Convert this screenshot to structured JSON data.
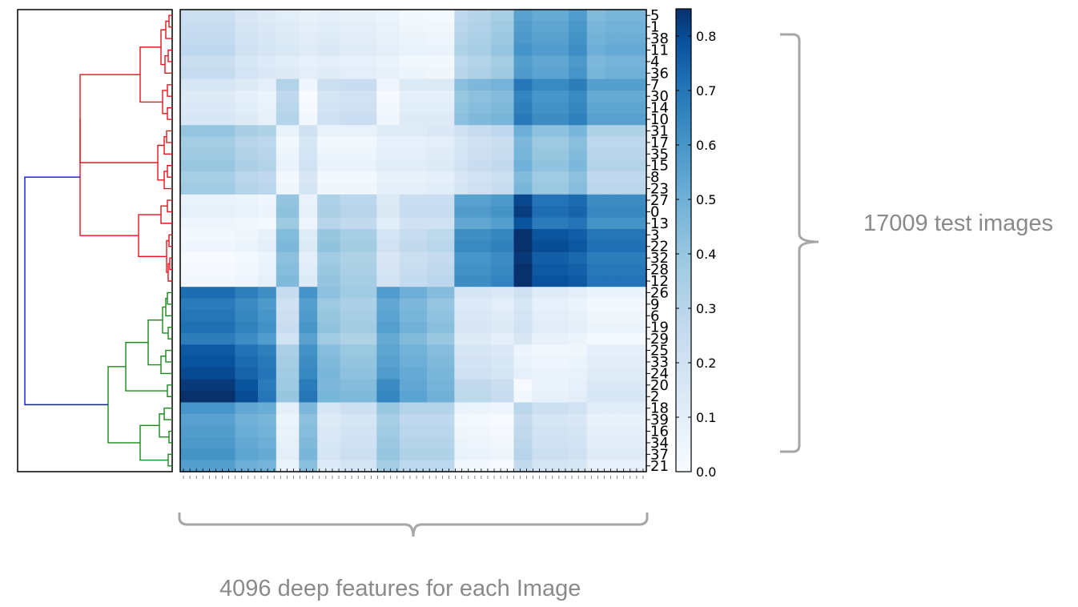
{
  "annotations": {
    "right_brace_label": "17009 test images",
    "bottom_brace_label": "4096 deep features for each Image"
  },
  "colors": {
    "cluster_red": "#e8141d",
    "cluster_green": "#1a8a1a",
    "root_blue": "#1010e0",
    "cmap_low": "#f7fbff",
    "cmap_high": "#08306b",
    "brace": "#a6a6a6"
  },
  "chart_data": {
    "type": "heatmap",
    "title": "",
    "row_labels": [
      "5",
      "1",
      "38",
      "11",
      "4",
      "36",
      "7",
      "30",
      "14",
      "10",
      "31",
      "17",
      "35",
      "15",
      "8",
      "23",
      "27",
      "0",
      "13",
      "3",
      "22",
      "32",
      "28",
      "12",
      "26",
      "9",
      "6",
      "19",
      "29",
      "25",
      "33",
      "24",
      "20",
      "2",
      "18",
      "39",
      "16",
      "34",
      "37",
      "21"
    ],
    "row_groups": [
      {
        "rows": [
          0,
          1,
          2,
          3,
          4,
          5
        ],
        "profile": "A"
      },
      {
        "rows": [
          6,
          7,
          8,
          9
        ],
        "profile": "B"
      },
      {
        "rows": [
          10,
          11,
          12,
          13,
          14,
          15
        ],
        "profile": "C"
      },
      {
        "rows": [
          16,
          17,
          18
        ],
        "profile": "D1"
      },
      {
        "rows": [
          19,
          20,
          21,
          22,
          23
        ],
        "profile": "D2"
      },
      {
        "rows": [
          24,
          25,
          26,
          27,
          28
        ],
        "profile": "E1"
      },
      {
        "rows": [
          29,
          30,
          31
        ],
        "profile": "E2"
      },
      {
        "rows": [
          32,
          33
        ],
        "profile": "E3"
      },
      {
        "rows": [
          34,
          35,
          36,
          37,
          38,
          39
        ],
        "profile": "F"
      }
    ],
    "column_block_fraction": [
      0.12,
      0.05,
      0.04,
      0.05,
      0.04,
      0.05,
      0.08,
      0.05,
      0.06,
      0.06,
      0.03,
      0.05,
      0.05,
      0.04,
      0.08,
      0.04,
      0.04,
      0.03,
      0.06
    ],
    "block_profiles": {
      "A": [
        0.25,
        0.18,
        0.15,
        0.13,
        0.1,
        0.12,
        0.1,
        0.08,
        0.05,
        0.04,
        0.3,
        0.33,
        0.38,
        0.58,
        0.55,
        0.6,
        0.48,
        0.5,
        0.5
      ],
      "B": [
        0.15,
        0.12,
        0.08,
        0.3,
        0.02,
        0.2,
        0.22,
        0.03,
        0.12,
        0.12,
        0.42,
        0.45,
        0.47,
        0.68,
        0.62,
        0.66,
        0.55,
        0.55,
        0.55
      ],
      "C": [
        0.38,
        0.32,
        0.3,
        0.05,
        0.18,
        0.05,
        0.05,
        0.1,
        0.1,
        0.12,
        0.18,
        0.22,
        0.25,
        0.48,
        0.4,
        0.45,
        0.3,
        0.3,
        0.3
      ],
      "D1": [
        0.06,
        0.05,
        0.03,
        0.4,
        0.06,
        0.32,
        0.28,
        0.13,
        0.22,
        0.22,
        0.55,
        0.55,
        0.58,
        0.8,
        0.7,
        0.72,
        0.62,
        0.62,
        0.62
      ],
      "D2": [
        0.02,
        0.04,
        0.08,
        0.45,
        0.12,
        0.4,
        0.35,
        0.18,
        0.25,
        0.28,
        0.62,
        0.62,
        0.65,
        0.86,
        0.78,
        0.76,
        0.7,
        0.7,
        0.7
      ],
      "E1": [
        0.7,
        0.65,
        0.6,
        0.22,
        0.58,
        0.4,
        0.35,
        0.55,
        0.48,
        0.42,
        0.15,
        0.15,
        0.12,
        0.18,
        0.1,
        0.08,
        0.04,
        0.04,
        0.04
      ],
      "E2": [
        0.78,
        0.72,
        0.68,
        0.35,
        0.62,
        0.45,
        0.4,
        0.55,
        0.5,
        0.45,
        0.18,
        0.18,
        0.15,
        0.06,
        0.04,
        0.05,
        0.1,
        0.1,
        0.1
      ],
      "E3": [
        0.85,
        0.8,
        0.7,
        0.4,
        0.7,
        0.48,
        0.46,
        0.65,
        0.55,
        0.5,
        0.28,
        0.28,
        0.25,
        0.02,
        0.08,
        0.1,
        0.16,
        0.16,
        0.16
      ],
      "F": [
        0.58,
        0.52,
        0.5,
        0.08,
        0.45,
        0.15,
        0.2,
        0.38,
        0.3,
        0.3,
        0.05,
        0.04,
        0.02,
        0.28,
        0.2,
        0.18,
        0.1,
        0.1,
        0.1
      ]
    },
    "colorbar": {
      "min": 0.0,
      "max": 0.85,
      "ticks": [
        "0.0",
        "0.1",
        "0.2",
        "0.3",
        "0.4",
        "0.5",
        "0.6",
        "0.7",
        "0.8"
      ]
    }
  }
}
